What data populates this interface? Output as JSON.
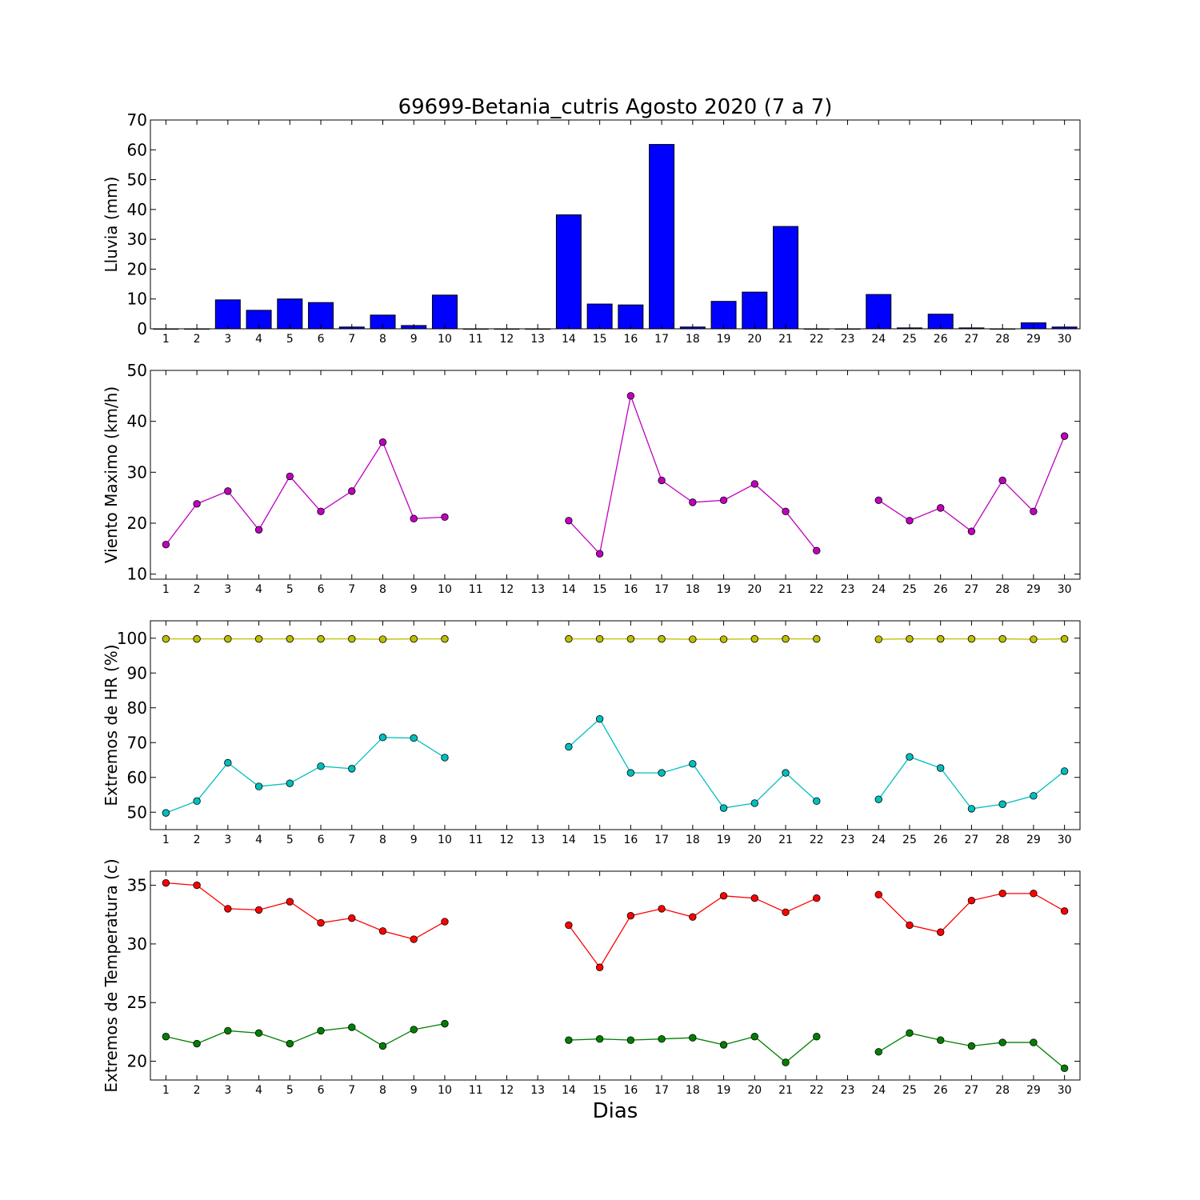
{
  "chart_data": {
    "title": "69699-Betania_cutris Agosto 2020  (7 a 7)",
    "xlabel": "Dias",
    "days": [
      1,
      2,
      3,
      4,
      5,
      6,
      7,
      8,
      9,
      10,
      11,
      12,
      13,
      14,
      15,
      16,
      17,
      18,
      19,
      20,
      21,
      22,
      23,
      24,
      25,
      26,
      27,
      28,
      29,
      30
    ],
    "panels": [
      {
        "type": "bar",
        "ylabel": "Lluvia (mm)",
        "ylim": [
          0,
          70
        ],
        "yticks": [
          0,
          10,
          20,
          30,
          40,
          50,
          60,
          70
        ],
        "series": [
          {
            "color": "#0000ff",
            "values": [
              0,
              0,
              9.7,
              6.2,
              10,
              8.8,
              0.6,
              4.6,
              1.1,
              11.3,
              0,
              0,
              0,
              38.2,
              8.3,
              8,
              61.8,
              0.6,
              9.2,
              12.3,
              34.3,
              0,
              0,
              11.5,
              0.3,
              4.9,
              0.3,
              0,
              2,
              0.6
            ]
          }
        ]
      },
      {
        "type": "line",
        "ylabel": "Viento Maximo (km/h)",
        "ylim": [
          9,
          50
        ],
        "yticks": [
          10,
          20,
          30,
          40,
          50
        ],
        "series": [
          {
            "color": "#bf00bf",
            "values": [
              15.8,
              23.8,
              26.3,
              18.7,
              29.2,
              22.3,
              26.3,
              35.9,
              20.9,
              21.2,
              null,
              null,
              null,
              20.5,
              14.0,
              45.0,
              28.4,
              24.1,
              24.5,
              27.7,
              22.3,
              14.6,
              null,
              24.5,
              20.5,
              23.0,
              18.4,
              28.4,
              22.3,
              37.1
            ]
          }
        ]
      },
      {
        "type": "line",
        "ylabel": "Extremos de HR (%)",
        "ylim": [
          45,
          105
        ],
        "yticks": [
          50,
          60,
          70,
          80,
          90,
          100
        ],
        "series": [
          {
            "color": "#bfbf00",
            "values": [
              99.8,
              99.8,
              99.8,
              99.8,
              99.8,
              99.8,
              99.8,
              99.7,
              99.8,
              99.8,
              null,
              null,
              null,
              99.8,
              99.8,
              99.8,
              99.8,
              99.7,
              99.7,
              99.8,
              99.8,
              99.8,
              null,
              99.7,
              99.8,
              99.8,
              99.8,
              99.8,
              99.7,
              99.8
            ]
          },
          {
            "color": "#00bfbf",
            "values": [
              49.8,
              53.2,
              64.2,
              57.4,
              58.3,
              63.2,
              62.5,
              71.5,
              71.3,
              65.7,
              null,
              null,
              null,
              68.8,
              76.8,
              61.3,
              61.3,
              63.9,
              51.2,
              52.6,
              61.3,
              53.2,
              null,
              53.7,
              65.9,
              62.7,
              51.0,
              52.3,
              54.7,
              61.8
            ]
          }
        ]
      },
      {
        "type": "line",
        "ylabel": "Extremos de Temperatura (c)",
        "ylim": [
          18.4,
          36.2
        ],
        "yticks": [
          20,
          25,
          30,
          35
        ],
        "series": [
          {
            "color": "#ff0000",
            "values": [
              35.2,
              35.0,
              33.0,
              32.9,
              33.6,
              31.8,
              32.2,
              31.1,
              30.4,
              31.9,
              null,
              null,
              null,
              31.6,
              28.0,
              32.4,
              33.0,
              32.3,
              34.1,
              33.9,
              32.7,
              33.9,
              null,
              34.2,
              31.6,
              31.0,
              33.7,
              34.3,
              34.3,
              32.8
            ]
          },
          {
            "color": "#008000",
            "values": [
              22.1,
              21.5,
              22.6,
              22.4,
              21.5,
              22.6,
              22.9,
              21.3,
              22.7,
              23.2,
              null,
              null,
              null,
              21.8,
              21.9,
              21.8,
              21.9,
              22.0,
              21.4,
              22.1,
              19.9,
              22.1,
              null,
              20.8,
              22.4,
              21.8,
              21.3,
              21.6,
              21.6,
              19.4
            ]
          }
        ]
      }
    ]
  }
}
